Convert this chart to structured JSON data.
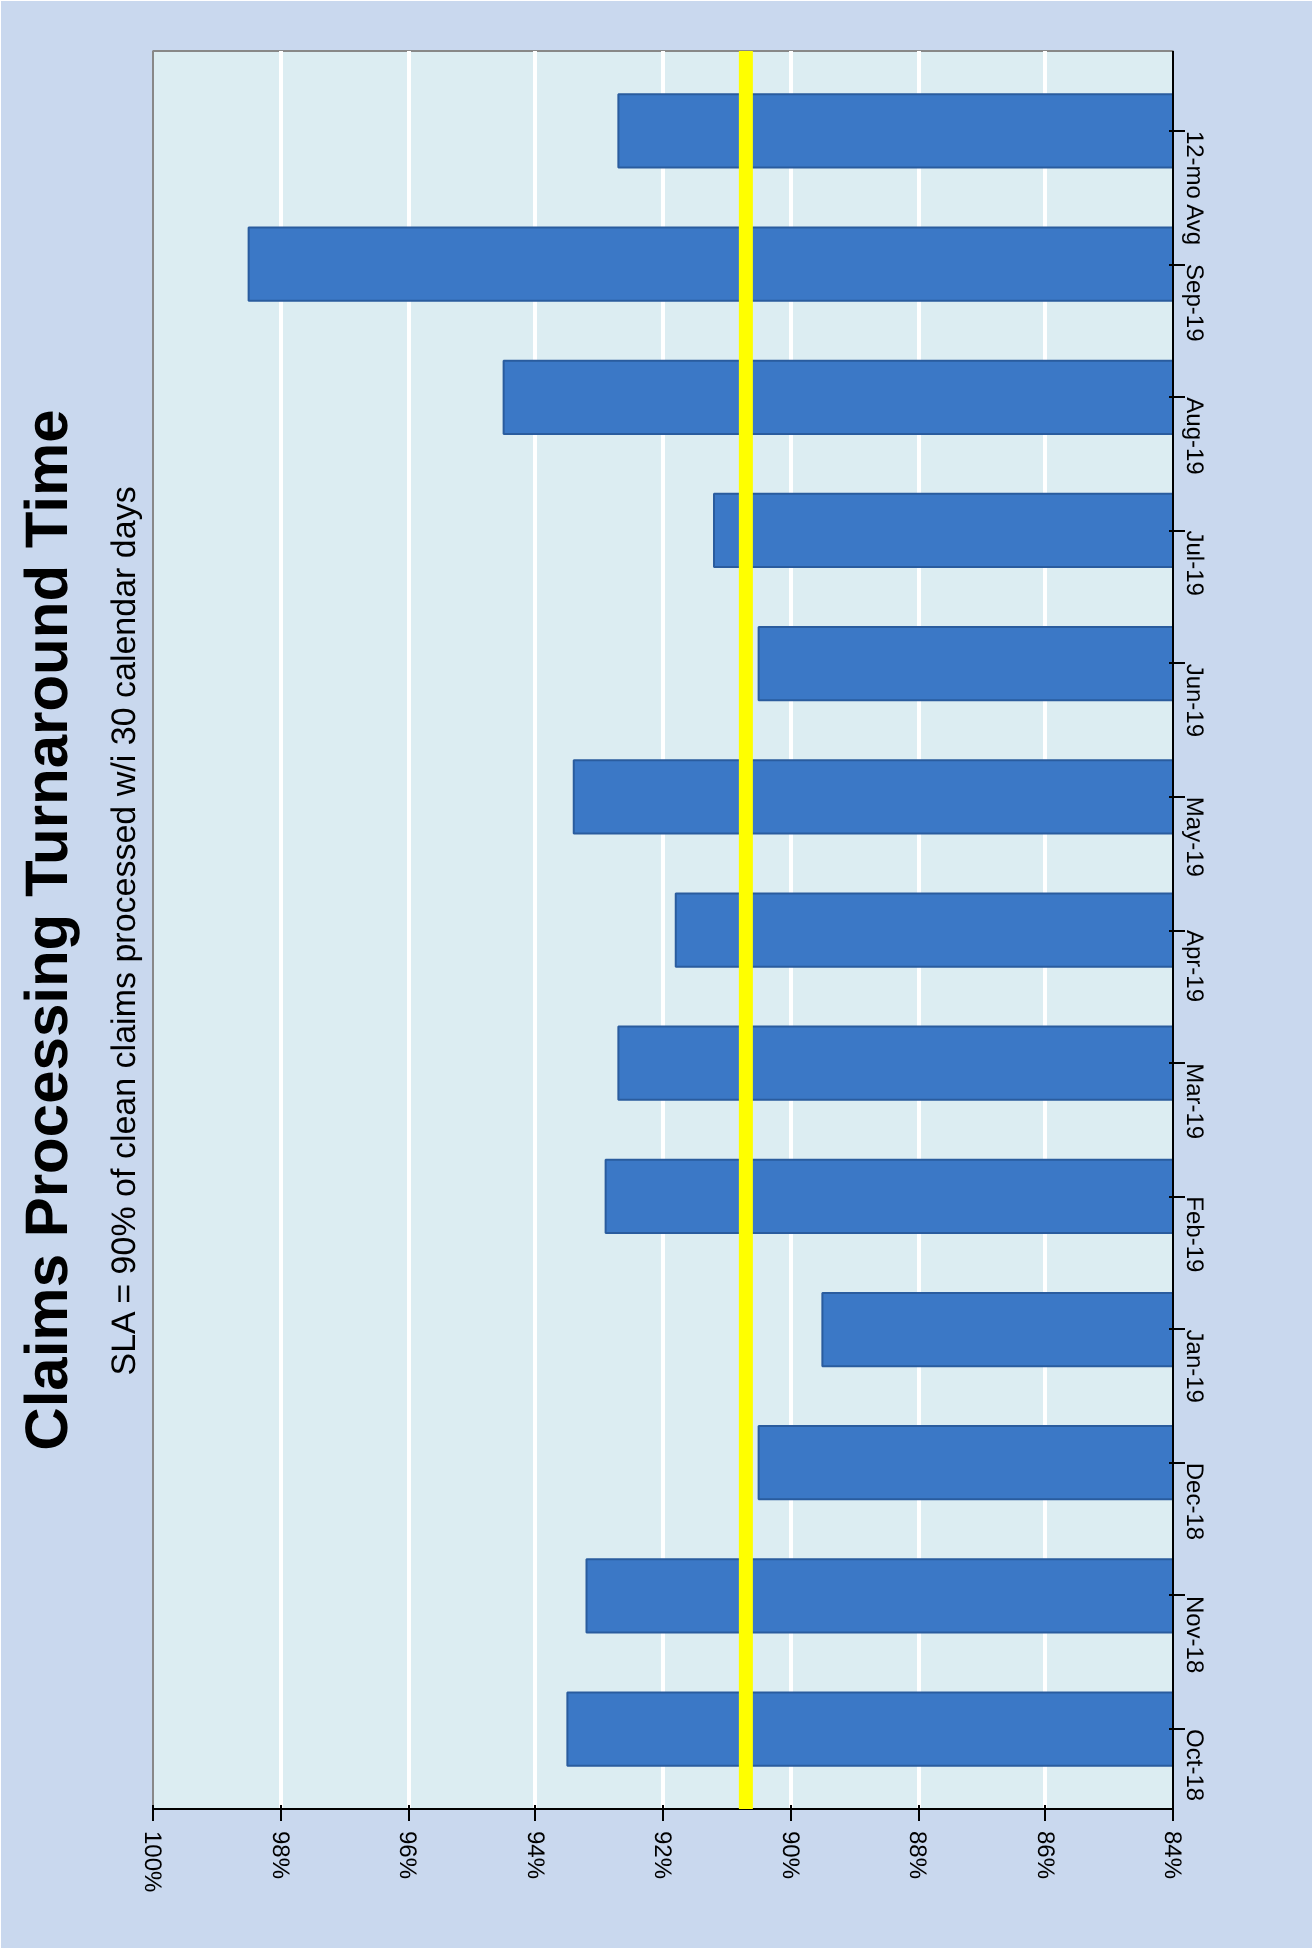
{
  "chart_data": {
    "type": "bar",
    "orientation": "horizontal",
    "title": "Claims Processing Turnaround Time",
    "subtitle": "SLA = 90% of clean claims processed w/i 30 calendar days",
    "categories": [
      "12-mo Avg",
      "Sep-19",
      "Aug-19",
      "Jul-19",
      "Jun-19",
      "May-19",
      "Apr-19",
      "Mar-19",
      "Feb-19",
      "Jan-19",
      "Dec-18",
      "Nov-18",
      "Oct-18"
    ],
    "values": [
      92.7,
      98.5,
      94.5,
      91.2,
      90.5,
      93.4,
      91.8,
      92.7,
      92.9,
      89.5,
      90.5,
      93.2,
      93.5
    ],
    "color": "#3b78c6",
    "xlim": [
      100,
      84
    ],
    "xticks": [
      {
        "value": 100,
        "label": "100%"
      },
      {
        "value": 98,
        "label": "98%"
      },
      {
        "value": 96,
        "label": "96%"
      },
      {
        "value": 94,
        "label": "94%"
      },
      {
        "value": 92,
        "label": "92%"
      },
      {
        "value": 90,
        "label": "90%"
      },
      {
        "value": 88,
        "label": "88%"
      },
      {
        "value": 86,
        "label": "86%"
      },
      {
        "value": 84,
        "label": "84%"
      }
    ],
    "ref_lines": [
      {
        "axis": "x",
        "value": 90.7,
        "label": null,
        "color": "#ffff00"
      }
    ],
    "grid": "x"
  }
}
